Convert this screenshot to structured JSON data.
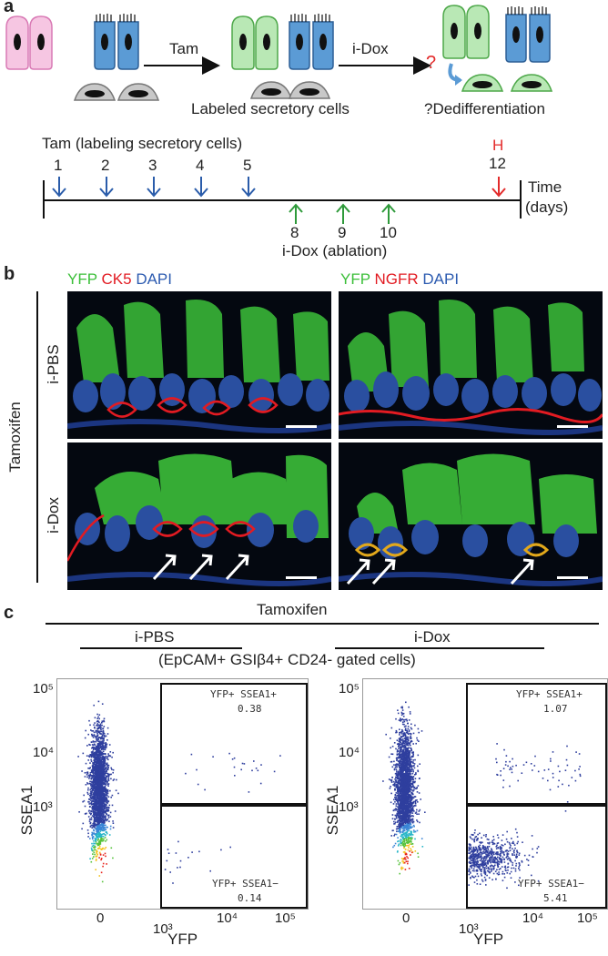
{
  "panel_labels": {
    "a": "a",
    "b": "b",
    "c": "c"
  },
  "panel_a": {
    "arrow1_label": "Tam",
    "arrow2_label": "i-Dox",
    "question_mark": "?",
    "caption_labeled": "Labeled secretory cells",
    "caption_dediff": "?Dedifferentiation",
    "timeline": {
      "tam_title": "Tam (labeling secretory cells)",
      "tam_days": [
        "1",
        "2",
        "3",
        "4",
        "5"
      ],
      "harvest_letter": "H",
      "harvest_day": "12",
      "time_label": "Time",
      "days_label": "(days)",
      "dox_days": [
        "8",
        "9",
        "10"
      ],
      "dox_title": "i-Dox (ablation)"
    },
    "colors": {
      "tam_arrow": "#2a5caa",
      "dox_arrow": "#2e9a3a",
      "harvest": "#e32b2b",
      "secretory_label": "#b9e8b5",
      "basal_grey": "#c8c8c8",
      "multiciliated": "#5b9bd5",
      "pink": "#f6c6e2"
    }
  },
  "panel_b": {
    "left_header": {
      "yfp": "YFP",
      "marker": "CK5",
      "dapi": "DAPI"
    },
    "right_header": {
      "yfp": "YFP",
      "marker": "NGFR",
      "dapi": "DAPI"
    },
    "row_labels": [
      "i-PBS",
      "i-Dox"
    ],
    "side_label": "Tamoxifen",
    "colors": {
      "yfp": "#3cbf3a",
      "marker": "#e21b22",
      "dapi": "#2c5bb0"
    }
  },
  "panel_c": {
    "top_label": "Tamoxifen",
    "group_left": "i-PBS",
    "group_right": "i-Dox",
    "gating": "(EpCAM+ GSIβ4+ CD24- gated cells)",
    "chart_data": [
      {
        "type": "scatter",
        "title": "i-PBS",
        "xlabel": "YFP",
        "ylabel": "SSEA1",
        "xticks": [
          "0",
          "10³",
          "10⁴",
          "10⁵"
        ],
        "yticks": [
          "10³",
          "10⁴",
          "10⁵"
        ],
        "xscale": "biexponential",
        "yscale": "biexponential",
        "gates": [
          {
            "name": "YFP+ SSEA1+",
            "percent": 0.38
          },
          {
            "name": "YFP+ SSEA1−",
            "percent": 0.14
          }
        ]
      },
      {
        "type": "scatter",
        "title": "i-Dox",
        "xlabel": "YFP",
        "ylabel": "SSEA1",
        "xticks": [
          "0",
          "10³",
          "10⁴",
          "10⁵"
        ],
        "yticks": [
          "10³",
          "10⁴",
          "10⁵"
        ],
        "xscale": "biexponential",
        "yscale": "biexponential",
        "gates": [
          {
            "name": "YFP+ SSEA1+",
            "percent": 1.07
          },
          {
            "name": "YFP+ SSEA1−",
            "percent": 5.41
          }
        ]
      }
    ],
    "gate_texts": {
      "left_top_name": "YFP+ SSEA1+",
      "left_top_val": "0.38",
      "left_bot_name": "YFP+ SSEA1−",
      "left_bot_val": "0.14",
      "right_top_name": "YFP+ SSEA1+",
      "right_top_val": "1.07",
      "right_bot_name": "YFP+ SSEA1−",
      "right_bot_val": "5.41"
    }
  }
}
